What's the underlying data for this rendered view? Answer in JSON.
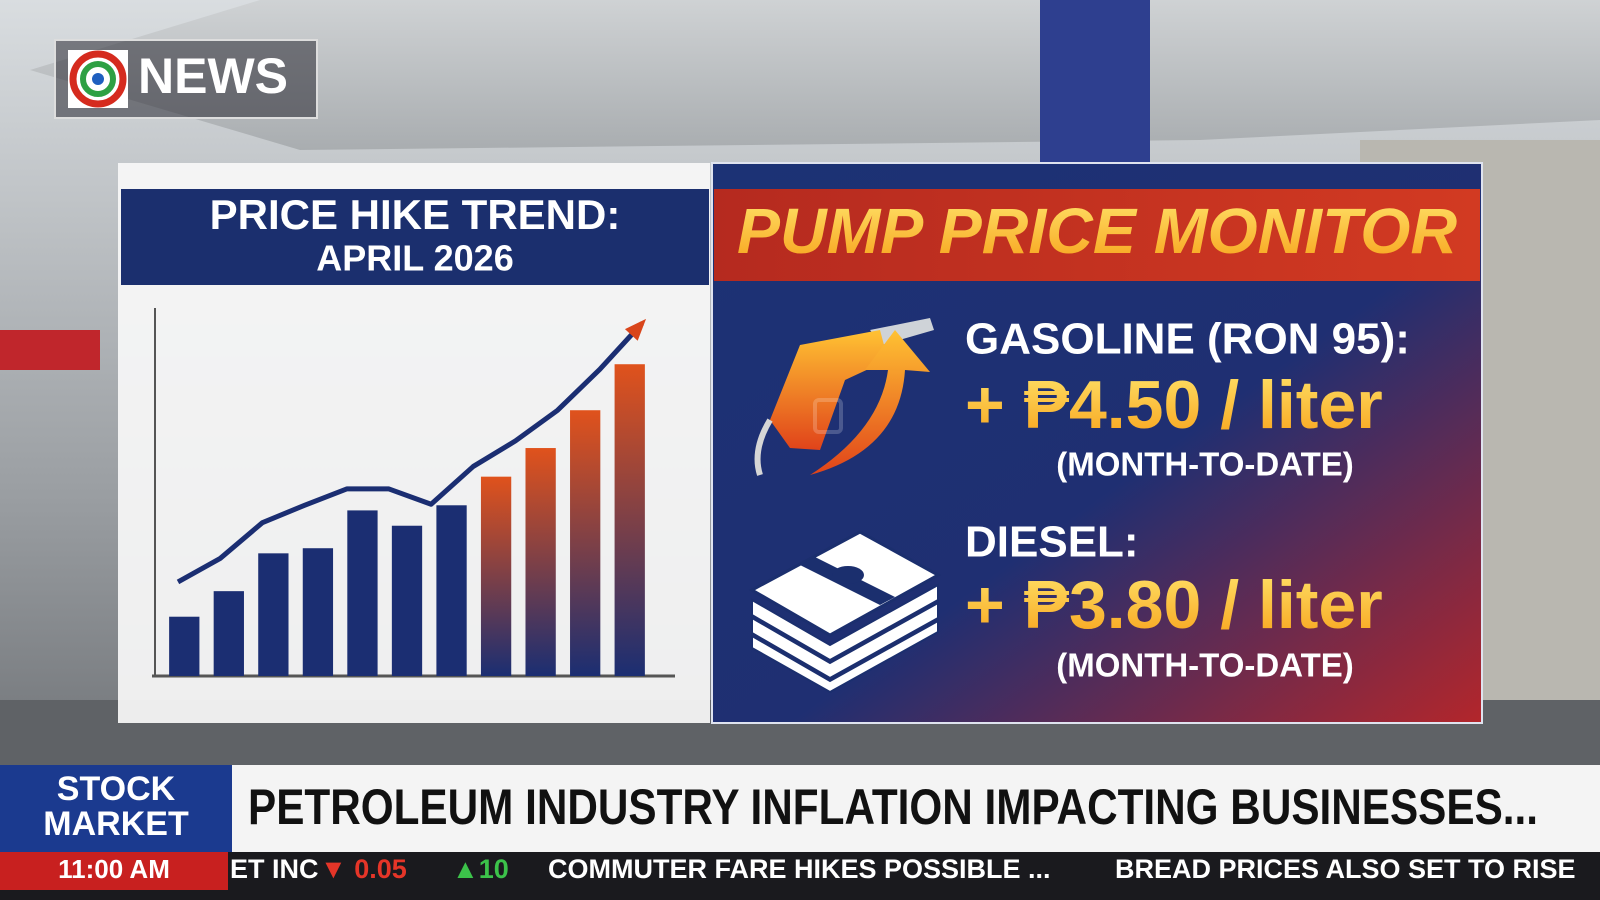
{
  "logo": {
    "text": "NEWS"
  },
  "trend_panel": {
    "title": "PRICE HIKE TREND:",
    "subtitle": "APRIL 2026",
    "chart_data": {
      "type": "bar",
      "values": [
        58,
        83,
        120,
        125,
        162,
        147,
        167,
        195,
        223,
        260,
        305
      ],
      "line_values": [
        92,
        115,
        150,
        167,
        183,
        183,
        168,
        205,
        230,
        260,
        300,
        345
      ],
      "ylim": [
        0,
        360
      ]
    }
  },
  "monitor_panel": {
    "title": "PUMP PRICE MONITOR",
    "items": [
      {
        "name": "GASOLINE (RON 95):",
        "change": "+ ₱4.50 / liter",
        "period": "(MONTH-TO-DATE)"
      },
      {
        "name": "DIESEL:",
        "change": "+ ₱3.80 / liter",
        "period": "(MONTH-TO-DATE)"
      }
    ]
  },
  "lower_third": {
    "section": [
      "STOCK",
      "MARKET"
    ],
    "headline": "PETROLEUM INDUSTRY INFLATION IMPACTING BUSINESSES...",
    "time": "11:00 AM",
    "ticker": [
      "ET INC",
      "▼ 0.05",
      "▲10",
      "COMMUTER FARE HIKES POSSIBLE ...",
      "BREAD PRICES ALSO SET TO RISE"
    ]
  }
}
